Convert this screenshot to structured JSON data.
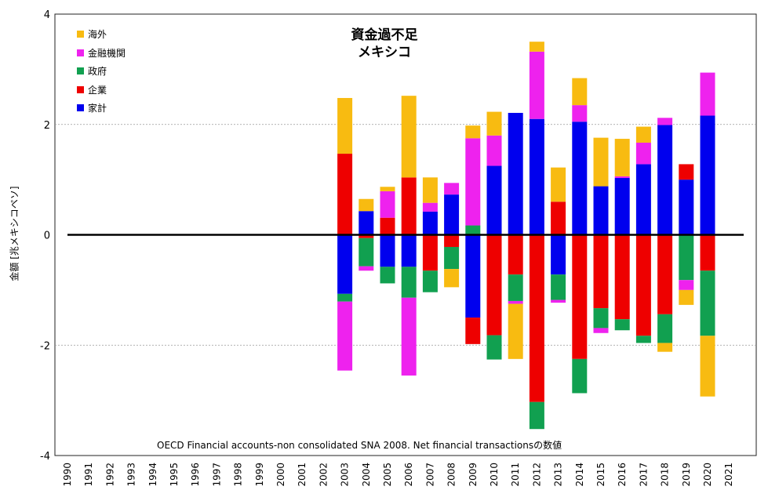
{
  "chart_data": {
    "type": "bar",
    "stacked": true,
    "title": "資金過不足",
    "subtitle": "メキシコ",
    "ylabel": "金額 [兆メキシコペソ]",
    "note": "OECD Financial accounts-non consolidated SNA 2008. Net financial transactionsの数値",
    "ylim": [
      -4,
      4
    ],
    "yticks": [
      "-4",
      "-2",
      "0",
      "2",
      "4"
    ],
    "grid": true,
    "legend_position": "top-left",
    "categories": [
      "1990",
      "1991",
      "1992",
      "1993",
      "1994",
      "1995",
      "1996",
      "1997",
      "1998",
      "1999",
      "2000",
      "2001",
      "2002",
      "2003",
      "2004",
      "2005",
      "2006",
      "2007",
      "2008",
      "2009",
      "2010",
      "2011",
      "2012",
      "2013",
      "2014",
      "2015",
      "2016",
      "2017",
      "2018",
      "2019",
      "2020",
      "2021"
    ],
    "series": [
      {
        "name": "家計",
        "color": "#0000ee",
        "values": [
          null,
          null,
          null,
          null,
          null,
          null,
          null,
          null,
          null,
          null,
          null,
          null,
          null,
          -1.07,
          0.43,
          -0.58,
          -0.58,
          0.42,
          0.73,
          -1.5,
          1.25,
          2.21,
          2.1,
          -0.72,
          2.05,
          0.88,
          1.03,
          1.28,
          1.99,
          1.0,
          2.16,
          null
        ]
      },
      {
        "name": "企業",
        "color": "#ee0000",
        "values": [
          null,
          null,
          null,
          null,
          null,
          null,
          null,
          null,
          null,
          null,
          null,
          null,
          null,
          1.47,
          -0.06,
          0.31,
          1.04,
          -0.65,
          -0.22,
          -0.48,
          -1.82,
          -0.72,
          -3.03,
          0.6,
          -2.25,
          -1.33,
          -1.53,
          -1.83,
          -1.44,
          0.28,
          -0.65,
          null
        ]
      },
      {
        "name": "政府",
        "color": "#11a050",
        "values": [
          null,
          null,
          null,
          null,
          null,
          null,
          null,
          null,
          null,
          null,
          null,
          null,
          null,
          -0.14,
          -0.51,
          -0.3,
          -0.56,
          -0.39,
          -0.4,
          0.17,
          -0.44,
          -0.48,
          -0.49,
          -0.46,
          -0.62,
          -0.36,
          -0.2,
          -0.13,
          -0.52,
          -0.82,
          -1.18,
          null
        ]
      },
      {
        "name": "金融機関",
        "color": "#ee22ee",
        "values": [
          null,
          null,
          null,
          null,
          null,
          null,
          null,
          null,
          null,
          null,
          null,
          null,
          null,
          -1.25,
          -0.08,
          0.48,
          -1.41,
          0.16,
          0.21,
          1.58,
          0.55,
          -0.05,
          1.22,
          -0.05,
          0.3,
          -0.09,
          0.03,
          0.39,
          0.13,
          -0.18,
          0.78,
          null
        ]
      },
      {
        "name": "海外",
        "color": "#f8bb11",
        "values": [
          null,
          null,
          null,
          null,
          null,
          null,
          null,
          null,
          null,
          null,
          null,
          null,
          null,
          1.01,
          0.22,
          0.08,
          1.48,
          0.46,
          -0.33,
          0.23,
          0.43,
          -1.0,
          0.18,
          0.62,
          0.49,
          0.88,
          0.68,
          0.29,
          -0.16,
          -0.27,
          -1.1,
          null
        ]
      }
    ]
  }
}
